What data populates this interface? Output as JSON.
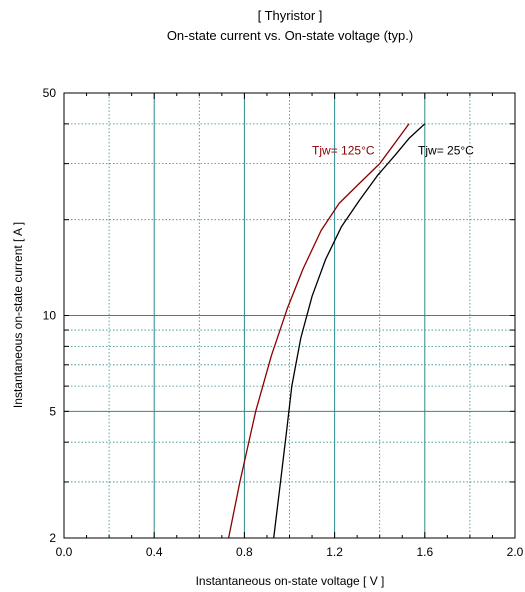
{
  "chart_data": {
    "type": "line",
    "title": "[ Thyristor ]",
    "subtitle": "On-state current  vs.  On-state voltage  (typ.)",
    "xlabel": "Instantaneous on-state voltage   [ V ]",
    "ylabel": "Instantaneous on-state current   [ A ]",
    "xlim": [
      0.0,
      2.0
    ],
    "ylim": [
      2,
      50
    ],
    "yscale": "log",
    "grid": true,
    "x_ticks": [
      "0.0",
      "0.4",
      "0.8",
      "1.2",
      "1.6",
      "2.0"
    ],
    "x_tick_values": [
      0.0,
      0.4,
      0.8,
      1.2,
      1.6,
      2.0
    ],
    "y_ticks": [
      "2",
      "5",
      "10",
      "50"
    ],
    "y_tick_values": [
      2,
      5,
      10,
      50
    ],
    "series": [
      {
        "name": "Tjw= 125°C",
        "color": "#8b0000",
        "points": [
          [
            0.73,
            2.0
          ],
          [
            0.78,
            3.0
          ],
          [
            0.85,
            5.0
          ],
          [
            0.92,
            7.5
          ],
          [
            0.99,
            10.5
          ],
          [
            1.06,
            14.0
          ],
          [
            1.14,
            18.5
          ],
          [
            1.22,
            22.5
          ],
          [
            1.31,
            26.0
          ],
          [
            1.4,
            30.0
          ],
          [
            1.47,
            35.0
          ],
          [
            1.53,
            40.0
          ]
        ]
      },
      {
        "name": "Tjw= 25°C",
        "color": "#000000",
        "points": [
          [
            0.93,
            2.0
          ],
          [
            0.96,
            3.0
          ],
          [
            0.99,
            4.5
          ],
          [
            1.01,
            6.0
          ],
          [
            1.05,
            8.5
          ],
          [
            1.1,
            11.5
          ],
          [
            1.16,
            15.0
          ],
          [
            1.23,
            19.0
          ],
          [
            1.31,
            23.0
          ],
          [
            1.39,
            27.5
          ],
          [
            1.47,
            32.0
          ],
          [
            1.53,
            36.0
          ],
          [
            1.6,
            40.0
          ]
        ]
      }
    ],
    "annotations": [
      {
        "text": "Tjw= 125°C",
        "x": 1.1,
        "y": 32,
        "color": "#8b0000"
      },
      {
        "text": "Tjw= 25°C",
        "x": 1.57,
        "y": 32,
        "color": "#000000"
      }
    ],
    "grid_color_major": "#2e8b8b",
    "grid_color_minor": "#2e8b8b"
  }
}
